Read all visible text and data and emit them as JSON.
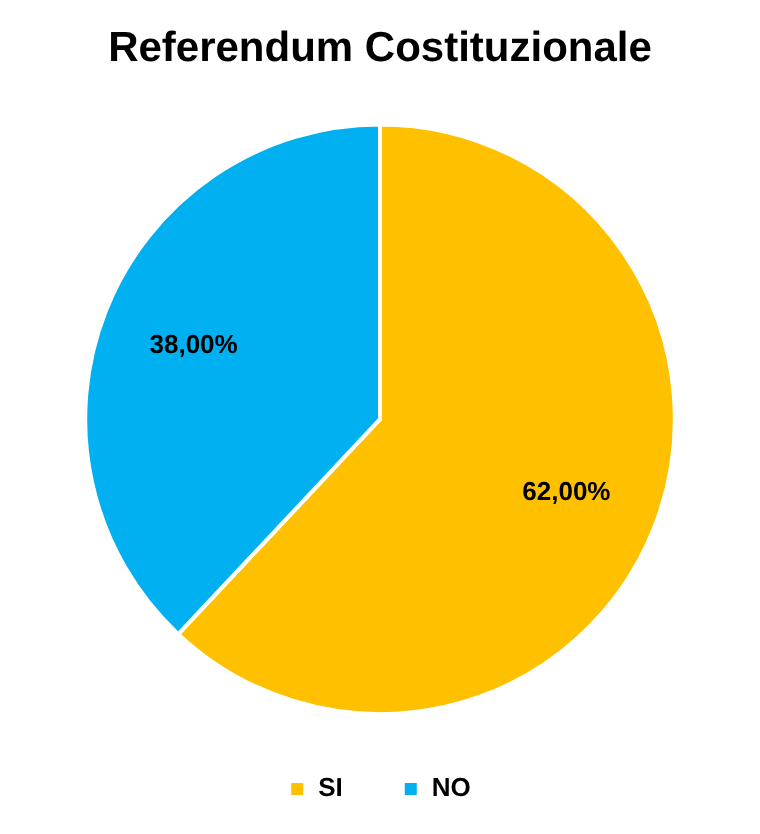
{
  "chart_data": {
    "type": "pie",
    "title": "Referendum Costituzionale",
    "categories": [
      "SI",
      "NO"
    ],
    "values": [
      62,
      38
    ],
    "colors": [
      "#ffc000",
      "#00b0f0"
    ],
    "value_labels": [
      "62,00%",
      "38,00%"
    ],
    "legend": "bottom"
  }
}
